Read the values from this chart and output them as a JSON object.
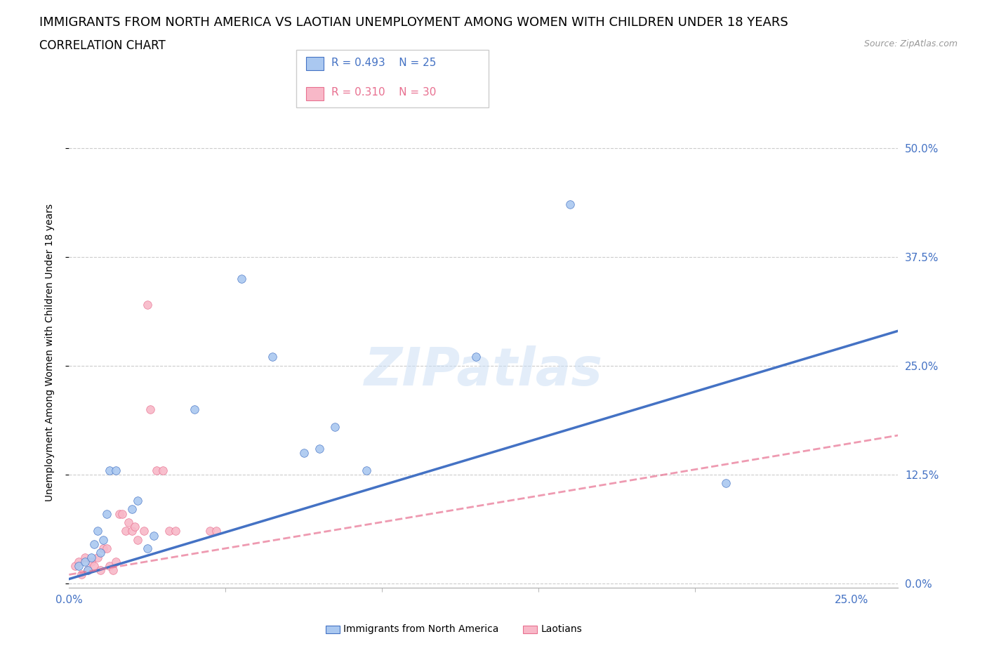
{
  "title": "IMMIGRANTS FROM NORTH AMERICA VS LAOTIAN UNEMPLOYMENT AMONG WOMEN WITH CHILDREN UNDER 18 YEARS",
  "subtitle": "CORRELATION CHART",
  "source": "Source: ZipAtlas.com",
  "xlabel_ticks": [
    "0.0%",
    "25.0%"
  ],
  "ylabel_ticks": [
    "0.0%",
    "12.5%",
    "25.0%",
    "37.5%",
    "50.0%"
  ],
  "xlim": [
    0.0,
    0.265
  ],
  "ylim": [
    -0.005,
    0.535
  ],
  "ylabel": "Unemployment Among Women with Children Under 18 years",
  "legend_entries": [
    {
      "label": "Immigrants from North America",
      "R": "0.493",
      "N": "25"
    },
    {
      "label": "Laotians",
      "R": "0.310",
      "N": "30"
    }
  ],
  "watermark": "ZIPatlas",
  "blue_scatter": [
    [
      0.003,
      0.02
    ],
    [
      0.005,
      0.025
    ],
    [
      0.006,
      0.015
    ],
    [
      0.007,
      0.03
    ],
    [
      0.008,
      0.045
    ],
    [
      0.009,
      0.06
    ],
    [
      0.01,
      0.035
    ],
    [
      0.011,
      0.05
    ],
    [
      0.012,
      0.08
    ],
    [
      0.013,
      0.13
    ],
    [
      0.015,
      0.13
    ],
    [
      0.02,
      0.085
    ],
    [
      0.022,
      0.095
    ],
    [
      0.025,
      0.04
    ],
    [
      0.027,
      0.055
    ],
    [
      0.04,
      0.2
    ],
    [
      0.055,
      0.35
    ],
    [
      0.065,
      0.26
    ],
    [
      0.075,
      0.15
    ],
    [
      0.08,
      0.155
    ],
    [
      0.085,
      0.18
    ],
    [
      0.095,
      0.13
    ],
    [
      0.13,
      0.26
    ],
    [
      0.16,
      0.435
    ],
    [
      0.21,
      0.115
    ]
  ],
  "pink_scatter": [
    [
      0.002,
      0.02
    ],
    [
      0.003,
      0.025
    ],
    [
      0.004,
      0.01
    ],
    [
      0.005,
      0.03
    ],
    [
      0.006,
      0.015
    ],
    [
      0.007,
      0.025
    ],
    [
      0.008,
      0.02
    ],
    [
      0.009,
      0.03
    ],
    [
      0.01,
      0.015
    ],
    [
      0.011,
      0.04
    ],
    [
      0.012,
      0.04
    ],
    [
      0.013,
      0.02
    ],
    [
      0.014,
      0.015
    ],
    [
      0.015,
      0.025
    ],
    [
      0.016,
      0.08
    ],
    [
      0.017,
      0.08
    ],
    [
      0.018,
      0.06
    ],
    [
      0.019,
      0.07
    ],
    [
      0.02,
      0.06
    ],
    [
      0.021,
      0.065
    ],
    [
      0.022,
      0.05
    ],
    [
      0.024,
      0.06
    ],
    [
      0.026,
      0.2
    ],
    [
      0.028,
      0.13
    ],
    [
      0.03,
      0.13
    ],
    [
      0.032,
      0.06
    ],
    [
      0.034,
      0.06
    ],
    [
      0.045,
      0.06
    ],
    [
      0.047,
      0.06
    ],
    [
      0.025,
      0.32
    ]
  ],
  "blue_line_x": [
    0.0,
    0.265
  ],
  "blue_line_y": [
    0.005,
    0.29
  ],
  "pink_line_x": [
    0.0,
    0.265
  ],
  "pink_line_y": [
    0.01,
    0.17
  ],
  "blue_color": "#4472c4",
  "pink_color": "#e87090",
  "blue_scatter_color": "#aac8f0",
  "pink_scatter_color": "#f8b8c8",
  "grid_color": "#cccccc",
  "tick_color": "#4472c4",
  "background_color": "#ffffff",
  "title_fontsize": 13,
  "subtitle_fontsize": 12
}
